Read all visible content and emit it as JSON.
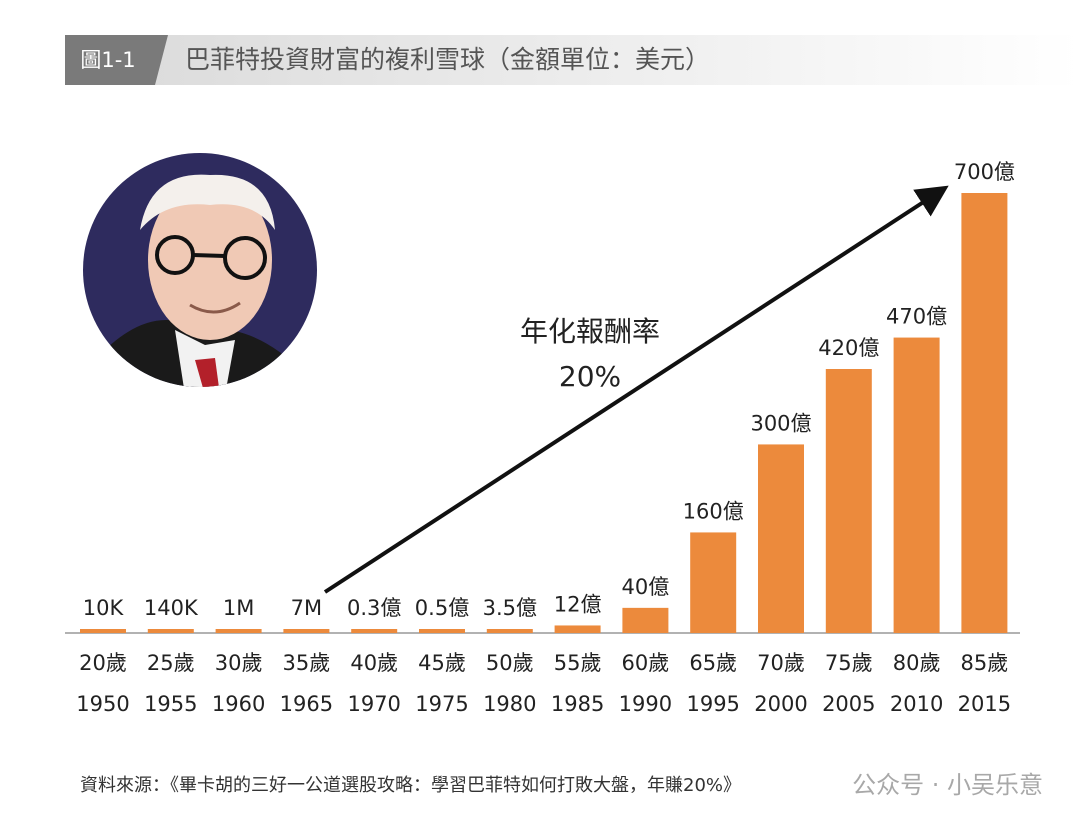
{
  "chart_data": {
    "type": "bar",
    "figure_label": "圖1-1",
    "title": "巴菲特投資財富的複利雪球（金額單位：美元）",
    "categories": [
      "20歲",
      "25歲",
      "30歲",
      "35歲",
      "40歲",
      "45歲",
      "50歲",
      "55歲",
      "60歲",
      "65歲",
      "70歲",
      "75歲",
      "80歲",
      "85歲"
    ],
    "years": [
      1950,
      1955,
      1960,
      1965,
      1970,
      1975,
      1980,
      1985,
      1990,
      1995,
      2000,
      2005,
      2010,
      2015
    ],
    "values": [
      10000,
      140000,
      1000000,
      7000000,
      30000000,
      50000000,
      350000000,
      1200000000,
      4000000000,
      16000000000,
      30000000000,
      42000000000,
      47000000000,
      70000000000
    ],
    "value_labels": [
      "10K",
      "140K",
      "1M",
      "7M",
      "0.3億",
      "0.5億",
      "3.5億",
      "12億",
      "40億",
      "160億",
      "300億",
      "420億",
      "470億",
      "700億"
    ],
    "color": "#ec8a3c",
    "annotations": [
      "年化報酬率",
      "20%"
    ],
    "source": "資料來源：《畢卡胡的三好一公道選股攻略：學習巴菲特如何打敗大盤，年賺20%》",
    "watermark": "公众号 · 小吴乐意"
  }
}
